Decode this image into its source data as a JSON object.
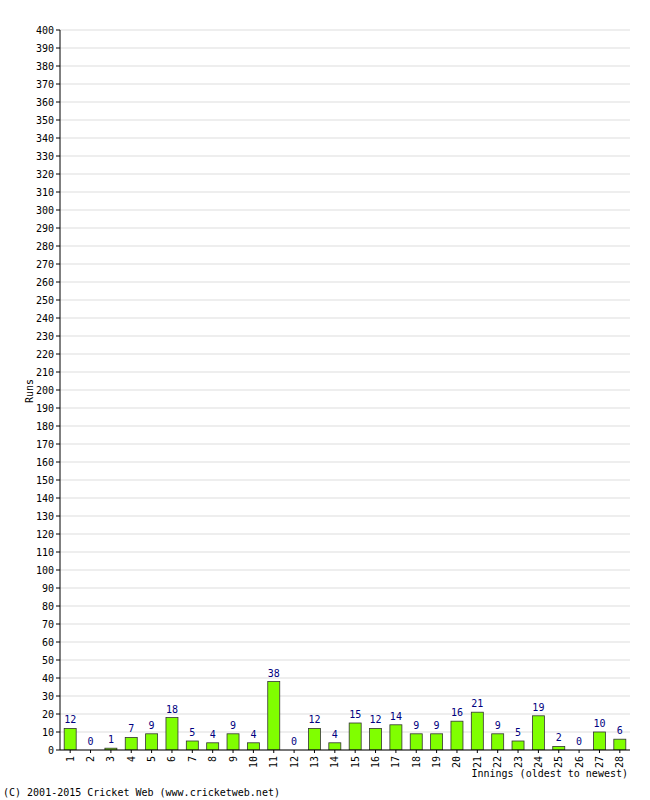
{
  "chart_data": {
    "type": "bar",
    "x_label": "Innings (oldest to newest)",
    "y_label": "Runs",
    "annotations": [
      "(C) 2001-2015 Cricket Web (www.cricketweb.net)"
    ],
    "categories": [
      "1",
      "2",
      "3",
      "4",
      "5",
      "6",
      "7",
      "8",
      "9",
      "10",
      "11",
      "12",
      "13",
      "14",
      "15",
      "16",
      "17",
      "18",
      "19",
      "20",
      "21",
      "22",
      "23",
      "24",
      "25",
      "26",
      "27",
      "28"
    ],
    "values": [
      12,
      0,
      1,
      7,
      9,
      18,
      5,
      4,
      9,
      4,
      38,
      0,
      12,
      4,
      15,
      12,
      14,
      9,
      9,
      16,
      21,
      9,
      5,
      19,
      2,
      0,
      10,
      6
    ],
    "color": "#80ff00",
    "ylim": [
      0,
      400
    ],
    "yticks": [
      0,
      10,
      20,
      30,
      40,
      50,
      60,
      70,
      80,
      90,
      100,
      110,
      120,
      130,
      140,
      150,
      160,
      170,
      180,
      190,
      200,
      210,
      220,
      230,
      240,
      250,
      260,
      270,
      280,
      290,
      300,
      310,
      320,
      330,
      340,
      350,
      360,
      370,
      380,
      390,
      400
    ],
    "grid": true,
    "data_labels": true
  }
}
